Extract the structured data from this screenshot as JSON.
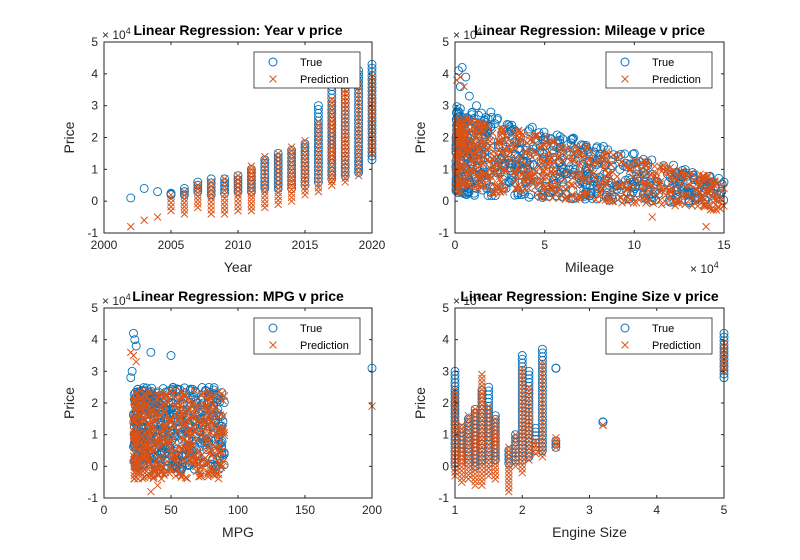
{
  "colors": {
    "true": "#0072BD",
    "prediction": "#D95319",
    "axis": "#262626"
  },
  "chart_data": [
    {
      "type": "scatter",
      "title": "Linear Regression: Year v price",
      "xlabel": "Year",
      "ylabel": "Price",
      "xlim": [
        2000,
        2020
      ],
      "ylim": [
        -1,
        5
      ],
      "xticks": [
        "2000",
        "2005",
        "2010",
        "2015",
        "2020"
      ],
      "yticks": [
        "-1",
        "0",
        "1",
        "2",
        "3",
        "4",
        "5"
      ],
      "y_exponent": "× 10^4",
      "x_exponent": "",
      "legend": [
        "True",
        "Prediction"
      ],
      "legend_position": "top-right",
      "series": [
        {
          "name": "True",
          "marker": "circle",
          "groups": [
            {
              "x": 2002,
              "y": [
                0.1
              ]
            },
            {
              "x": 2003,
              "y": [
                0.4
              ]
            },
            {
              "x": 2004,
              "y": [
                0.3
              ]
            },
            {
              "x": 2005,
              "y": [
                0.2,
                0.25
              ]
            },
            {
              "x": 2006,
              "y": [
                0.2,
                0.4
              ]
            },
            {
              "x": 2007,
              "y": [
                0.3,
                0.6
              ]
            },
            {
              "x": 2008,
              "y": [
                0.2,
                0.7
              ]
            },
            {
              "x": 2009,
              "y": [
                0.25,
                0.7
              ]
            },
            {
              "x": 2010,
              "y": [
                0.3,
                0.8
              ]
            },
            {
              "x": 2011,
              "y": [
                0.3,
                1.0
              ]
            },
            {
              "x": 2012,
              "y": [
                0.4,
                1.3
              ]
            },
            {
              "x": 2013,
              "y": [
                0.4,
                1.5
              ]
            },
            {
              "x": 2014,
              "y": [
                0.4,
                1.6
              ]
            },
            {
              "x": 2015,
              "y": [
                0.5,
                1.8
              ]
            },
            {
              "x": 2016,
              "y": [
                0.6,
                3.0
              ]
            },
            {
              "x": 2017,
              "y": [
                0.7,
                3.6
              ]
            },
            {
              "x": 2018,
              "y": [
                0.8,
                3.8
              ]
            },
            {
              "x": 2019,
              "y": [
                0.9,
                4.1
              ]
            },
            {
              "x": 2020,
              "y": [
                1.3,
                4.3
              ]
            }
          ]
        },
        {
          "name": "Prediction",
          "marker": "x",
          "groups": [
            {
              "x": 2002,
              "y": [
                -0.8
              ]
            },
            {
              "x": 2003,
              "y": [
                -0.6
              ]
            },
            {
              "x": 2004,
              "y": [
                -0.5
              ]
            },
            {
              "x": 2005,
              "y": [
                -0.3,
                0.2
              ]
            },
            {
              "x": 2006,
              "y": [
                -0.4,
                0.3
              ]
            },
            {
              "x": 2007,
              "y": [
                -0.2,
                0.5
              ]
            },
            {
              "x": 2008,
              "y": [
                -0.4,
                0.6
              ]
            },
            {
              "x": 2009,
              "y": [
                -0.4,
                0.7
              ]
            },
            {
              "x": 2010,
              "y": [
                -0.3,
                0.8
              ]
            },
            {
              "x": 2011,
              "y": [
                -0.3,
                1.1
              ]
            },
            {
              "x": 2012,
              "y": [
                -0.2,
                1.4
              ]
            },
            {
              "x": 2013,
              "y": [
                -0.1,
                1.5
              ]
            },
            {
              "x": 2014,
              "y": [
                0.0,
                1.7
              ]
            },
            {
              "x": 2015,
              "y": [
                0.2,
                1.9
              ]
            },
            {
              "x": 2016,
              "y": [
                0.3,
                2.5
              ]
            },
            {
              "x": 2017,
              "y": [
                0.5,
                3.2
              ]
            },
            {
              "x": 2018,
              "y": [
                0.6,
                3.5
              ]
            },
            {
              "x": 2019,
              "y": [
                0.8,
                3.7
              ]
            },
            {
              "x": 2020,
              "y": [
                1.5,
                3.9
              ]
            }
          ]
        }
      ]
    },
    {
      "type": "scatter",
      "title": "Linear Regression: Mileage v price",
      "xlabel": "Mileage",
      "ylabel": "Price",
      "xlim": [
        0,
        150000
      ],
      "ylim": [
        -1,
        5
      ],
      "xticks": [
        "0",
        "5",
        "10",
        "15"
      ],
      "yticks": [
        "-1",
        "0",
        "1",
        "2",
        "3",
        "4",
        "5"
      ],
      "y_exponent": "× 10^4",
      "x_exponent": "× 10^4",
      "legend": [
        "True",
        "Prediction"
      ],
      "legend_position": "top-right",
      "series": [
        {
          "name": "True",
          "marker": "circle",
          "trend": {
            "x_range": [
              500,
              150000
            ],
            "y_at_start": 1.6,
            "y_at_end": 0.3,
            "spread_start": 1.4,
            "spread_end": 0.4
          },
          "extra": [
            [
              2000,
              4.1
            ],
            [
              4000,
              4.2
            ],
            [
              6000,
              3.9
            ],
            [
              3000,
              3.6
            ],
            [
              8000,
              3.3
            ],
            [
              12000,
              3.0
            ],
            [
              20000,
              2.8
            ],
            [
              30000,
              2.4
            ],
            [
              100000,
              1.5
            ],
            [
              135000,
              0.3
            ],
            [
              150000,
              0.6
            ]
          ]
        },
        {
          "name": "Prediction",
          "marker": "x",
          "trend": {
            "x_range": [
              500,
              150000
            ],
            "y_at_start": 1.5,
            "y_at_end": 0.2,
            "spread_start": 1.2,
            "spread_end": 0.5
          },
          "extra": [
            [
              1000,
              3.8
            ],
            [
              3000,
              3.9
            ],
            [
              5000,
              3.6
            ],
            [
              140000,
              -0.8
            ],
            [
              150000,
              0.4
            ],
            [
              110000,
              -0.5
            ]
          ]
        }
      ]
    },
    {
      "type": "scatter",
      "title": "Linear Regression: MPG v price",
      "xlabel": "MPG",
      "ylabel": "Price",
      "xlim": [
        0,
        200
      ],
      "ylim": [
        -1,
        5
      ],
      "xticks": [
        "0",
        "50",
        "100",
        "150",
        "200"
      ],
      "yticks": [
        "-1",
        "0",
        "1",
        "2",
        "3",
        "4",
        "5"
      ],
      "y_exponent": "× 10^4",
      "x_exponent": "",
      "legend": [
        "True",
        "Prediction"
      ],
      "legend_position": "top-right",
      "series": [
        {
          "name": "True",
          "marker": "circle",
          "cluster": {
            "x_range": [
              22,
              90
            ],
            "y_center": 1.2,
            "y_spread": 1.3
          },
          "extra": [
            [
              22,
              4.2
            ],
            [
              23,
              4.0
            ],
            [
              24,
              3.8
            ],
            [
              21,
              3.0
            ],
            [
              20,
              2.8
            ],
            [
              35,
              3.6
            ],
            [
              50,
              3.5
            ],
            [
              200,
              3.1
            ]
          ]
        },
        {
          "name": "Prediction",
          "marker": "x",
          "cluster": {
            "x_range": [
              22,
              90
            ],
            "y_center": 1.0,
            "y_spread": 1.4
          },
          "extra": [
            [
              20,
              3.6
            ],
            [
              22,
              3.5
            ],
            [
              24,
              3.3
            ],
            [
              35,
              -0.8
            ],
            [
              40,
              -0.6
            ],
            [
              200,
              1.9
            ]
          ]
        }
      ]
    },
    {
      "type": "scatter",
      "title": "Linear Regression: Engine Size v price",
      "xlabel": "Engine Size",
      "ylabel": "Price",
      "xlim": [
        1,
        5
      ],
      "ylim": [
        -1,
        5
      ],
      "xticks": [
        "1",
        "2",
        "3",
        "4",
        "5"
      ],
      "yticks": [
        "-1",
        "0",
        "1",
        "2",
        "3",
        "4",
        "5"
      ],
      "y_exponent": "× 10^4",
      "x_exponent": "",
      "legend": [
        "True",
        "Prediction"
      ],
      "legend_position": "top-right",
      "series": [
        {
          "name": "True",
          "marker": "circle",
          "groups": [
            {
              "x": 1.0,
              "y": [
                0.0,
                3.0
              ]
            },
            {
              "x": 1.1,
              "y": [
                0.2,
                1.2
              ]
            },
            {
              "x": 1.2,
              "y": [
                0.1,
                1.5
              ]
            },
            {
              "x": 1.3,
              "y": [
                0.0,
                1.8
              ]
            },
            {
              "x": 1.4,
              "y": [
                0.2,
                2.4
              ]
            },
            {
              "x": 1.5,
              "y": [
                0.1,
                2.5
              ]
            },
            {
              "x": 1.6,
              "y": [
                0.2,
                1.6
              ]
            },
            {
              "x": 1.8,
              "y": [
                0.1,
                0.5
              ]
            },
            {
              "x": 1.9,
              "y": [
                0.2,
                1.0
              ]
            },
            {
              "x": 2.0,
              "y": [
                0.2,
                3.5
              ]
            },
            {
              "x": 2.1,
              "y": [
                0.3,
                3.0
              ]
            },
            {
              "x": 2.2,
              "y": [
                0.5,
                1.2
              ]
            },
            {
              "x": 2.3,
              "y": [
                0.5,
                3.7
              ]
            },
            {
              "x": 2.5,
              "y": [
                0.6,
                0.8
              ]
            },
            {
              "x": 2.5,
              "y": [
                3.1,
                3.1
              ]
            },
            {
              "x": 3.2,
              "y": [
                1.4,
                1.4
              ]
            },
            {
              "x": 5.0,
              "y": [
                2.8,
                4.2
              ]
            }
          ]
        },
        {
          "name": "Prediction",
          "marker": "x",
          "groups": [
            {
              "x": 1.0,
              "y": [
                -0.3,
                2.4
              ]
            },
            {
              "x": 1.1,
              "y": [
                -0.5,
                1.3
              ]
            },
            {
              "x": 1.2,
              "y": [
                -0.4,
                1.6
              ]
            },
            {
              "x": 1.3,
              "y": [
                -0.6,
                1.8
              ]
            },
            {
              "x": 1.4,
              "y": [
                -0.6,
                2.9
              ]
            },
            {
              "x": 1.5,
              "y": [
                -0.3,
                1.9
              ]
            },
            {
              "x": 1.6,
              "y": [
                -0.4,
                1.5
              ]
            },
            {
              "x": 1.8,
              "y": [
                -0.8,
                0.6
              ]
            },
            {
              "x": 1.9,
              "y": [
                0.0,
                1.0
              ]
            },
            {
              "x": 2.0,
              "y": [
                -0.2,
                3.1
              ]
            },
            {
              "x": 2.1,
              "y": [
                0.2,
                2.5
              ]
            },
            {
              "x": 2.2,
              "y": [
                0.4,
                0.8
              ]
            },
            {
              "x": 2.3,
              "y": [
                0.3,
                3.3
              ]
            },
            {
              "x": 2.5,
              "y": [
                0.6,
                0.9
              ]
            },
            {
              "x": 3.2,
              "y": [
                1.3,
                1.3
              ]
            },
            {
              "x": 5.0,
              "y": [
                3.0,
                3.9
              ]
            }
          ]
        }
      ]
    }
  ]
}
